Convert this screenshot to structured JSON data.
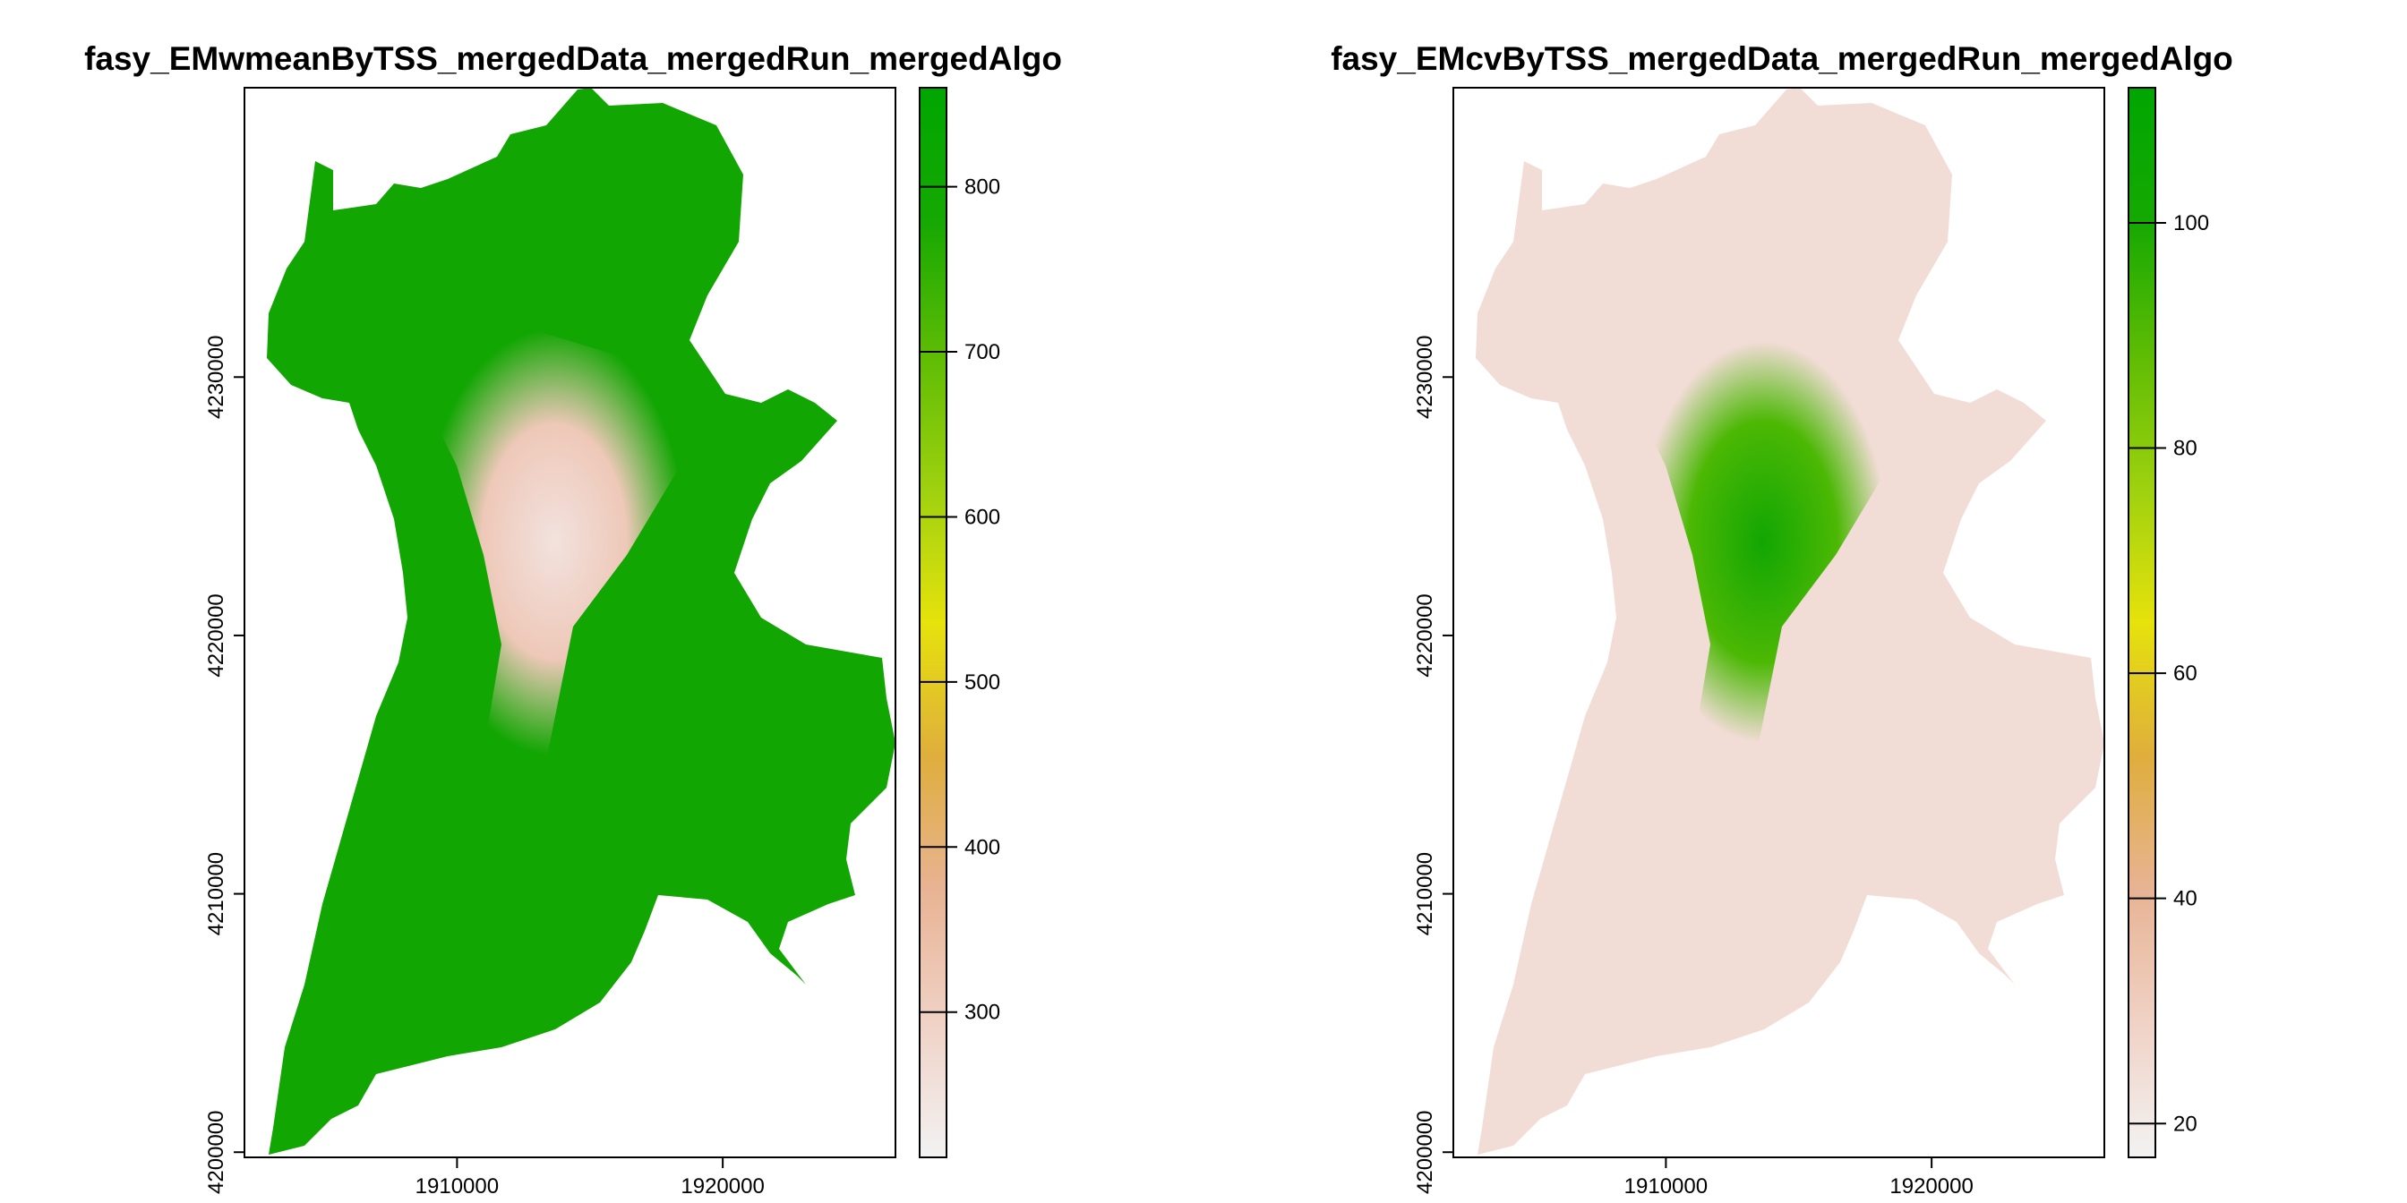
{
  "chart_data": [
    {
      "type": "heatmap",
      "title": "fasy_EMwmeanByTSS_mergedData_mergedRun_mergedAlgo",
      "xlabel": "",
      "ylabel": "",
      "x_ticks": [
        "1910000",
        "1920000"
      ],
      "x_tick_values": [
        1910000,
        1920000
      ],
      "y_ticks": [
        "4200000",
        "4210000",
        "4220000",
        "4230000"
      ],
      "y_tick_values": [
        4200000,
        4210000,
        4220000,
        4230000
      ],
      "xlim": [
        1902000,
        1926500
      ],
      "ylim": [
        4199800,
        4241200
      ],
      "colorbar": {
        "ticks": [
          "300",
          "400",
          "500",
          "600",
          "700",
          "800"
        ],
        "tick_values": [
          300,
          400,
          500,
          600,
          700,
          800
        ],
        "range": [
          212,
          860
        ],
        "colors": [
          "#f2f2f2",
          "#f0d2c6",
          "#e8b394",
          "#dfae3c",
          "#e6e20c",
          "#9ed10f",
          "#5ebc04",
          "#16a803",
          "#00a600"
        ]
      },
      "dominant_color": "#12a603"
    },
    {
      "type": "heatmap",
      "title": "fasy_EMcvByTSS_mergedData_mergedRun_mergedAlgo",
      "xlabel": "",
      "ylabel": "",
      "x_ticks": [
        "1910000",
        "1920000"
      ],
      "x_tick_values": [
        1910000,
        1920000
      ],
      "y_ticks": [
        "4200000",
        "4210000",
        "4220000",
        "4230000"
      ],
      "y_tick_values": [
        4200000,
        4210000,
        4220000,
        4230000
      ],
      "xlim": [
        1902000,
        1926500
      ],
      "ylim": [
        4199800,
        4241200
      ],
      "colorbar": {
        "ticks": [
          "20",
          "40",
          "60",
          "80",
          "100"
        ],
        "tick_values": [
          20,
          40,
          60,
          80,
          100
        ],
        "range": [
          17,
          112
        ],
        "colors": [
          "#f2f2f2",
          "#f0d2c6",
          "#e8b394",
          "#dfae3c",
          "#e6e20c",
          "#9ed10f",
          "#5ebc04",
          "#16a803",
          "#00a600"
        ]
      },
      "dominant_color": "#f2dcd6"
    }
  ]
}
